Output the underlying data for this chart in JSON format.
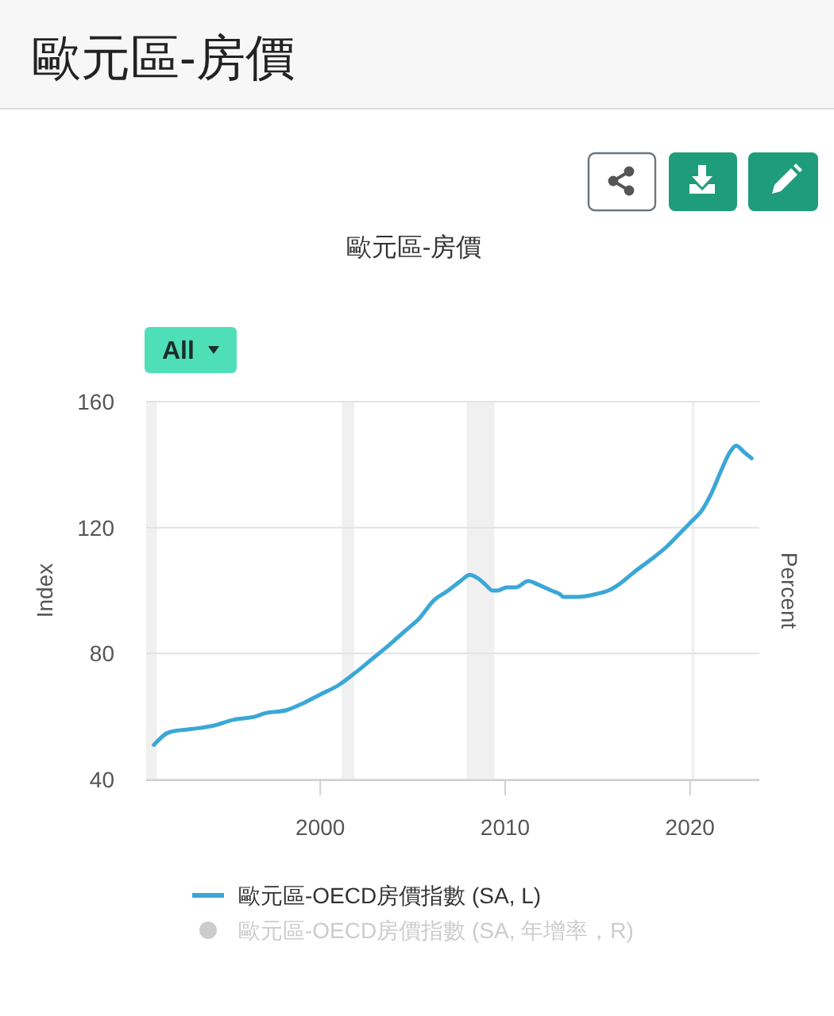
{
  "chart_data": {
    "type": "line",
    "title": "歐元區-房價",
    "subtitle": "歐元區-房價",
    "ylabel": "Index",
    "y2label": "Percent",
    "annotations": [
      "All"
    ],
    "x": [
      "1991-01",
      "1991-11",
      "1993-01",
      "1994-03",
      "1995-05",
      "1996-07",
      "1997-01",
      "1998-03",
      "1999-01",
      "2000-01",
      "2001-01",
      "2001-12",
      "2002-10",
      "2003-08",
      "2004-03",
      "2004-10",
      "2005-05",
      "2006-03",
      "2006-12",
      "2007-08",
      "2008-02",
      "2008-07",
      "2008-12",
      "2009-05",
      "2009-08",
      "2010-02",
      "2010-08",
      "2011-04",
      "2011-10",
      "2012-07",
      "2012-12",
      "2013-03",
      "2013-12",
      "2015-01",
      "2015-08",
      "2016-03",
      "2017-01",
      "2017-12",
      "2018-10",
      "2019-08",
      "2020-02",
      "2020-08",
      "2021-03",
      "2021-10",
      "2022-03",
      "2022-07",
      "2022-12",
      "2023-05"
    ],
    "series": [
      {
        "name": "歐元區-OECD房價指數 (SA, L)",
        "color": "#3ba7d6",
        "values": [
          51,
          55,
          56,
          57,
          59,
          60,
          61,
          62,
          64,
          67,
          70,
          74,
          78,
          82,
          85,
          88,
          91,
          97,
          100,
          103,
          105,
          104,
          102,
          100,
          100,
          101,
          101,
          103,
          102,
          100,
          99,
          98,
          98,
          99,
          100,
          102,
          106,
          110,
          114,
          119,
          122,
          125,
          131,
          139,
          144,
          146,
          144,
          142
        ]
      },
      {
        "name": "歐元區-OECD房價指數 (SA, 年增率，R)",
        "color": "#cccccc",
        "values": [
          null,
          null,
          null,
          null,
          null,
          null,
          null,
          null,
          null,
          null,
          null,
          null,
          null,
          null,
          null,
          null,
          null,
          null,
          null,
          null,
          null,
          null,
          null,
          null,
          null,
          null,
          null,
          null,
          null,
          null,
          null,
          null,
          null,
          null,
          null,
          null,
          null,
          null,
          null,
          null,
          null,
          null,
          null,
          null,
          null,
          null,
          null,
          null
        ]
      }
    ],
    "xlim": [
      "1990-08",
      "2023-10"
    ],
    "xticks": [
      "2000",
      "2010",
      "2020"
    ],
    "ylim": [
      40,
      160
    ],
    "yticks": [
      40,
      80,
      120,
      160
    ],
    "bands": [
      {
        "axis": "x",
        "from": "1990-08",
        "to": "1991-03",
        "color": "#f0f0f0"
      },
      {
        "axis": "x",
        "from": "2001-03",
        "to": "2001-11",
        "color": "#f0f0f0"
      },
      {
        "axis": "x",
        "from": "2007-12",
        "to": "2009-06",
        "color": "#f0f0f0"
      },
      {
        "axis": "x",
        "from": "2020-02",
        "to": "2020-04",
        "color": "#f0f0f0"
      }
    ],
    "grid": "y",
    "legend": "bottom"
  }
}
